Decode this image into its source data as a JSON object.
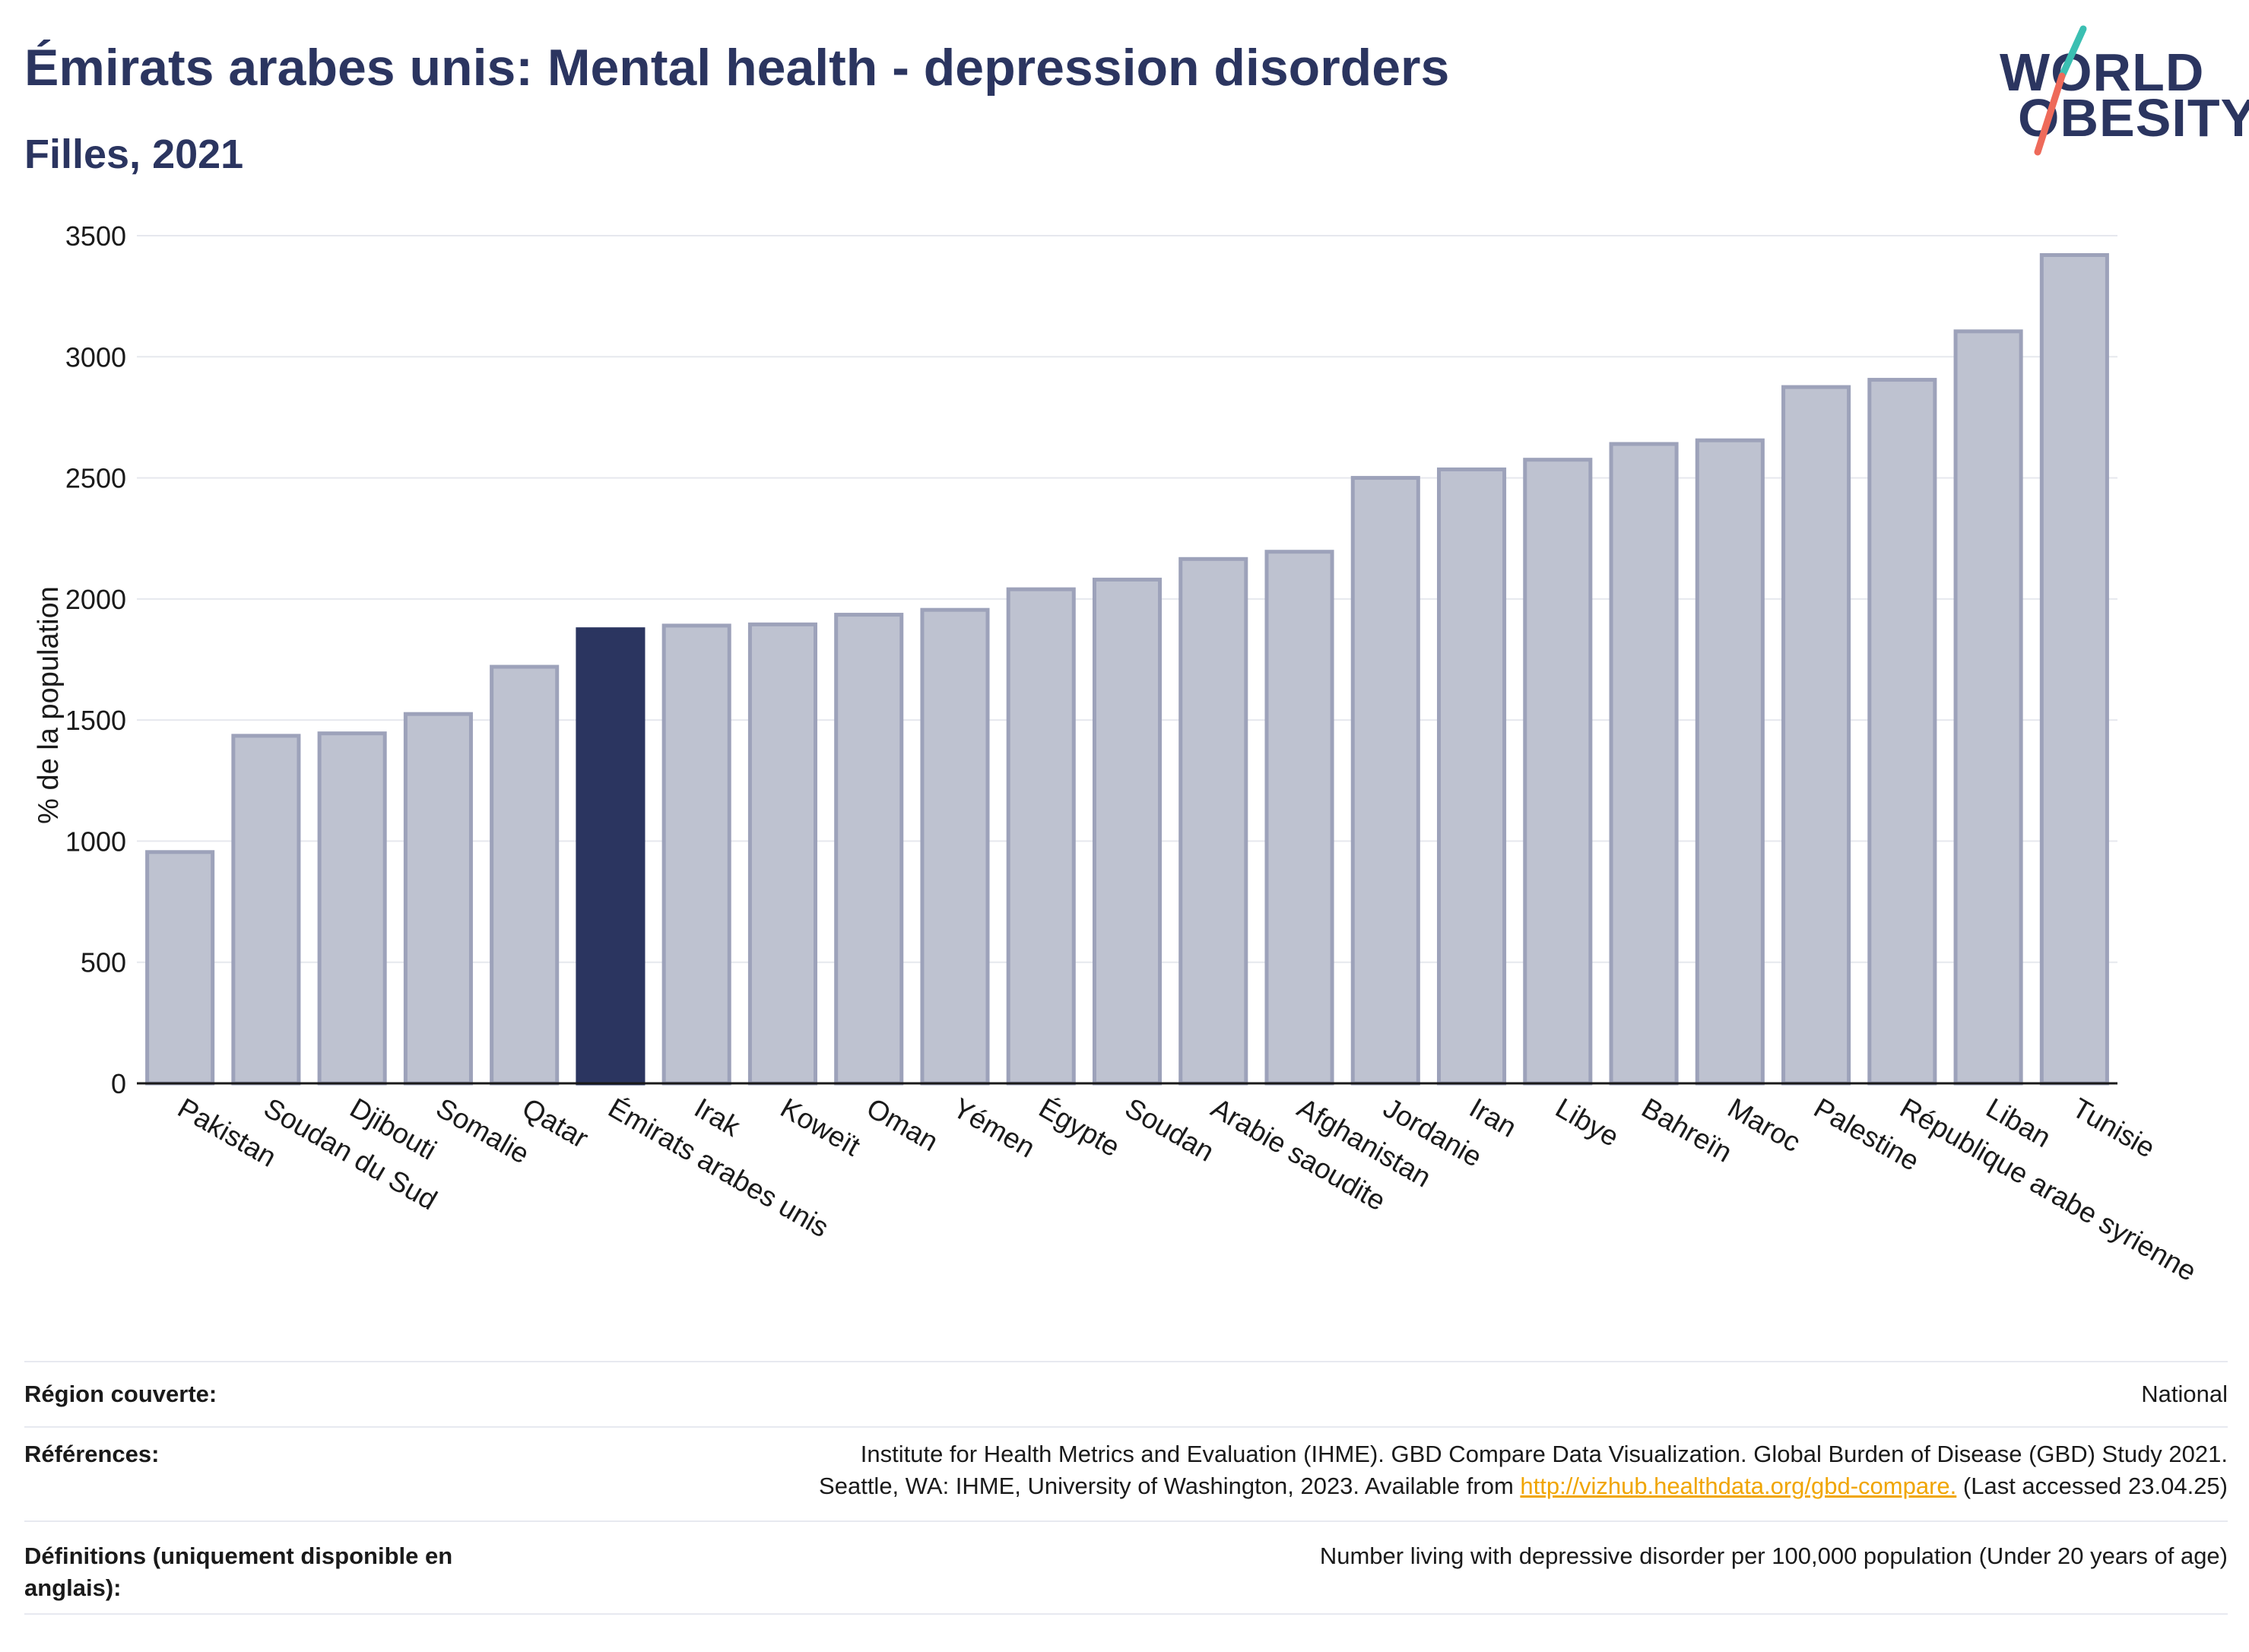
{
  "header": {
    "title": "Émirats arabes unis: Mental health - depression disorders",
    "subtitle": "Filles, 2021"
  },
  "logo": {
    "line1": "WORLD",
    "line2": "OBESITY"
  },
  "colors": {
    "highlight_bar": "#2b3560",
    "other_bar_fill": "#bec2d0",
    "other_bar_stroke": "#9da2ba",
    "gridline": "#e6e8ee",
    "logo_teal": "#3bbfb2",
    "logo_coral": "#ee6a5a",
    "link": "#f0a500"
  },
  "chart_data": {
    "type": "bar",
    "ylabel": "% de la population",
    "ylim": [
      0,
      3500
    ],
    "yticks": [
      0,
      500,
      1000,
      1500,
      2000,
      2500,
      3000,
      3500
    ],
    "grid": true,
    "highlight": "Émirats arabes unis",
    "categories": [
      "Pakistan",
      "Soudan du Sud",
      "Djibouti",
      "Somalie",
      "Qatar",
      "Émirats arabes unis",
      "Irak",
      "Koweït",
      "Oman",
      "Yémen",
      "Égypte",
      "Soudan",
      "Arabie saoudite",
      "Afghanistan",
      "Jordanie",
      "Iran",
      "Libye",
      "Bahreïn",
      "Maroc",
      "Palestine",
      "République arabe syrienne",
      "Liban",
      "Tunisie"
    ],
    "values": [
      955,
      1435,
      1445,
      1525,
      1720,
      1875,
      1890,
      1895,
      1935,
      1955,
      2040,
      2080,
      2165,
      2195,
      2500,
      2535,
      2575,
      2640,
      2655,
      2875,
      2905,
      3105,
      3420
    ]
  },
  "info": {
    "region_label": "Région couverte:",
    "region_value": "National",
    "refs_label": "Références:",
    "refs_line1": "Institute for Health Metrics and Evaluation (IHME). GBD Compare Data Visualization. Global Burden of Disease (GBD) Study 2021.",
    "refs_line2_pre": "Seattle, WA: IHME, University of Washington, 2023. Available from ",
    "refs_link": "http://vizhub.healthdata.org/gbd-compare.",
    "refs_line2_post": " (Last accessed 23.04.25)",
    "defs_label": "Définitions (uniquement disponible en anglais):",
    "defs_value": "Number living with depressive disorder per 100,000 population (Under 20 years of age)"
  }
}
